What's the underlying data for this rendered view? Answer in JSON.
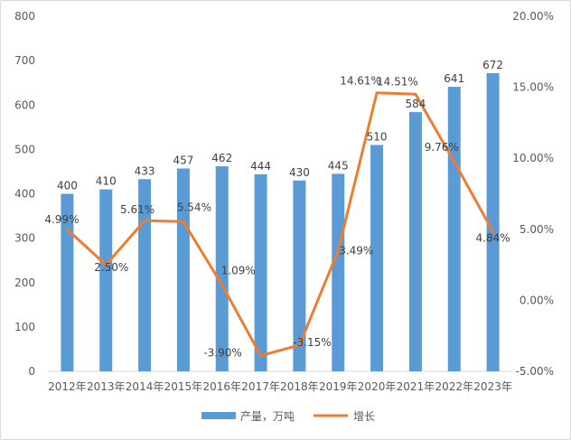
{
  "chart_data": {
    "type": "bar",
    "categories": [
      "2012年",
      "2013年",
      "2014年",
      "2015年",
      "2016年",
      "2017年",
      "2018年",
      "2019年",
      "2020年",
      "2021年",
      "2022年",
      "2023年"
    ],
    "series": [
      {
        "name": "产量，万吨",
        "type": "bar",
        "axis": "left",
        "color": "#5b9bd5",
        "values": [
          400,
          410,
          433,
          457,
          462,
          444,
          430,
          445,
          510,
          584,
          641,
          672
        ],
        "labels": [
          "400",
          "410",
          "433",
          "457",
          "462",
          "444",
          "430",
          "445",
          "510",
          "584",
          "641",
          "672"
        ]
      },
      {
        "name": "增长",
        "type": "line",
        "axis": "right",
        "color": "#ed7d31",
        "values": [
          4.99,
          2.5,
          5.61,
          5.54,
          1.09,
          -3.9,
          -3.15,
          3.49,
          14.61,
          14.51,
          9.76,
          4.84
        ],
        "labels": [
          "4.99%",
          "2.50%",
          "5.61%",
          "5.54%",
          "1.09%",
          "-3.90%",
          "-3.15%",
          "3.49%",
          "14.61%",
          "14.51%",
          "9.76%",
          "4.84%"
        ]
      }
    ],
    "y_left": {
      "ylim": [
        0,
        800
      ],
      "ticks": [
        0,
        100,
        200,
        300,
        400,
        500,
        600,
        700,
        800
      ],
      "tick_labels": [
        "0",
        "100",
        "200",
        "300",
        "400",
        "500",
        "600",
        "700",
        "800"
      ]
    },
    "y_right": {
      "ylim": [
        -5,
        20
      ],
      "ticks": [
        -5,
        0,
        5,
        10,
        15,
        20
      ],
      "tick_labels": [
        "-5.00%",
        "0.00%",
        "5.00%",
        "10.00%",
        "15.00%",
        "20.00%"
      ]
    },
    "grid": false,
    "legend": "bottom",
    "legend_labels": [
      "产量，万吨",
      "增长"
    ]
  }
}
